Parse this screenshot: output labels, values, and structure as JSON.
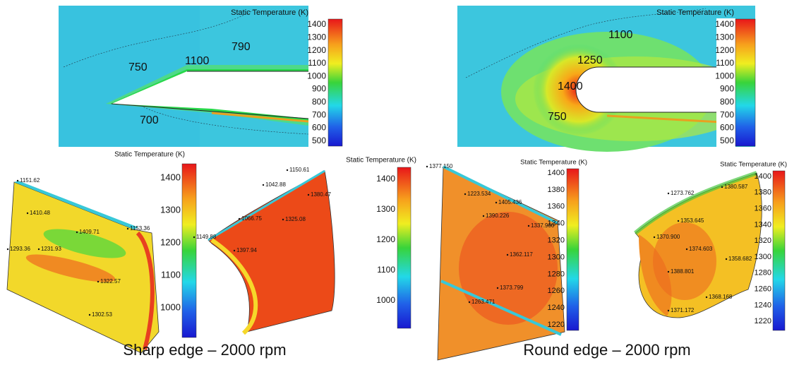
{
  "panels": [
    {
      "colorbar": {
        "title": "Static Temperature (K)",
        "ticks": [
          "1400",
          "1300",
          "1200",
          "1100",
          "1000",
          "900",
          "800",
          "700",
          "600",
          "500"
        ]
      },
      "labels": [
        "750",
        "1100",
        "790",
        "700"
      ]
    },
    {
      "colorbar": {
        "title": "Static Temperature (K)",
        "ticks": [
          "1400",
          "1300",
          "1200",
          "1100",
          "1000",
          "900",
          "800",
          "700",
          "600",
          "500"
        ]
      },
      "labels": [
        "1100",
        "1250",
        "1400",
        "750"
      ]
    },
    {
      "colorbar": {
        "title": "Static Temperature (K)",
        "ticks": [
          "1400",
          "1300",
          "1200",
          "1100",
          "1000"
        ]
      },
      "labels": [
        "1151.62",
        "1410.48",
        "1409.71",
        "1153.36",
        "1293.36",
        "1231.93",
        "1322.57",
        "1302.53"
      ]
    },
    {
      "colorbar": {
        "title": "Static Temperature (K)",
        "ticks": [
          "1400",
          "1300",
          "1200",
          "1100",
          "1000"
        ]
      },
      "labels": [
        "1150.61",
        "1042.88",
        "1380.47",
        "1066.75",
        "1325.08",
        "1149.88",
        "1397.94"
      ]
    },
    {
      "colorbar": {
        "title": "Static Temperature (K)",
        "ticks": [
          "1400",
          "1380",
          "1360",
          "1340",
          "1320",
          "1300",
          "1280",
          "1260",
          "1240",
          "1220"
        ]
      },
      "labels": [
        "1377.150",
        "1223.534",
        "1405.436",
        "1390.226",
        "1337.900",
        "1362.117",
        "1373.799",
        "1263.471"
      ]
    },
    {
      "colorbar": {
        "title": "Static Temperature (K)",
        "ticks": [
          "1400",
          "1380",
          "1360",
          "1340",
          "1320",
          "1300",
          "1280",
          "1260",
          "1240",
          "1220"
        ]
      },
      "labels": [
        "1273.762",
        "1380.587",
        "1353.645",
        "1370.900",
        "1374.603",
        "1358.682",
        "1388.801",
        "1368.168",
        "1371.172"
      ]
    }
  ],
  "captions": [
    "Sharp edge – 2000 rpm",
    "Round edge – 2000 rpm"
  ]
}
